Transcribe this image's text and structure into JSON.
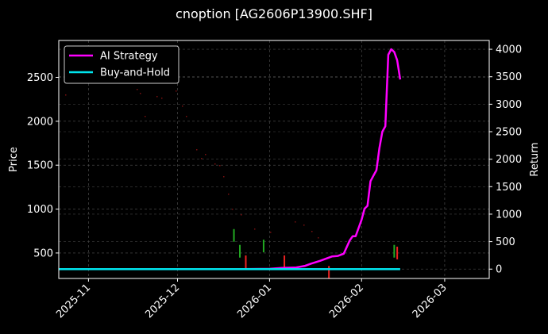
{
  "title": "cnoption [AG2606P13900.SHF]",
  "chart_data": {
    "type": "line",
    "title": "cnoption [AG2606P13900.SHF]",
    "xlabel": "",
    "ylabel": "Price",
    "ylabel_right": "Return",
    "x_ticks": [
      "2025-11",
      "2025-12",
      "2026-01",
      "2026-02",
      "2026-03"
    ],
    "y_ticks_left": [
      500,
      1000,
      1500,
      2000,
      2500
    ],
    "y_ticks_right": [
      0,
      500,
      1000,
      1500,
      2000,
      2500,
      3000,
      3500,
      4000
    ],
    "ylim_left": [
      210,
      2920
    ],
    "ylim_right": [
      -170,
      4160
    ],
    "xlim": [
      "2025-10-22",
      "2026-03-16"
    ],
    "grid": true,
    "legend_position": "upper left",
    "legend": [
      "AI Strategy",
      "Buy-and-Hold"
    ],
    "series": [
      {
        "name": "AI Strategy",
        "color": "#ff00ff",
        "axis": "right",
        "x": [
          "2025-12-23",
          "2026-01-01",
          "2026-01-05",
          "2026-01-10",
          "2026-01-13",
          "2026-01-15",
          "2026-01-18",
          "2026-01-22",
          "2026-01-24",
          "2026-01-26",
          "2026-01-28",
          "2026-01-29",
          "2026-01-30",
          "2026-02-01",
          "2026-02-02",
          "2026-02-03",
          "2026-02-04",
          "2026-02-05",
          "2026-02-06",
          "2026-02-07",
          "2026-02-08",
          "2026-02-09",
          "2026-02-10",
          "2026-02-11",
          "2026-02-12",
          "2026-02-13",
          "2026-02-14"
        ],
        "values": [
          0,
          5,
          20,
          30,
          60,
          100,
          150,
          230,
          240,
          280,
          520,
          600,
          600,
          900,
          1100,
          1150,
          1600,
          1700,
          1800,
          2200,
          2500,
          2600,
          3900,
          4000,
          3950,
          3800,
          3450
        ]
      },
      {
        "name": "Buy-and-Hold",
        "color": "#00e5ee",
        "axis": "right",
        "x": [
          "2025-10-22",
          "2026-02-14"
        ],
        "values": [
          0,
          0
        ]
      },
      {
        "name": "Price candles (up)",
        "color": "#22aa22",
        "axis": "left",
        "x": [
          "2025-12-20",
          "2025-12-22",
          "2025-12-30",
          "2026-02-12"
        ],
        "values": [
          700,
          520,
          580,
          520
        ]
      },
      {
        "name": "Price candles (down)",
        "color": "#ee2222",
        "axis": "left",
        "x": [
          "2025-12-24",
          "2026-01-06",
          "2026-01-21",
          "2026-02-13"
        ],
        "values": [
          400,
          400,
          280,
          500
        ]
      }
    ]
  },
  "ui": {
    "left_axis_label": "Price",
    "right_axis_label": "Return",
    "legend_items": [
      {
        "label": "AI Strategy",
        "color": "#ff00ff"
      },
      {
        "label": "Buy-and-Hold",
        "color": "#00e5ee"
      }
    ]
  }
}
